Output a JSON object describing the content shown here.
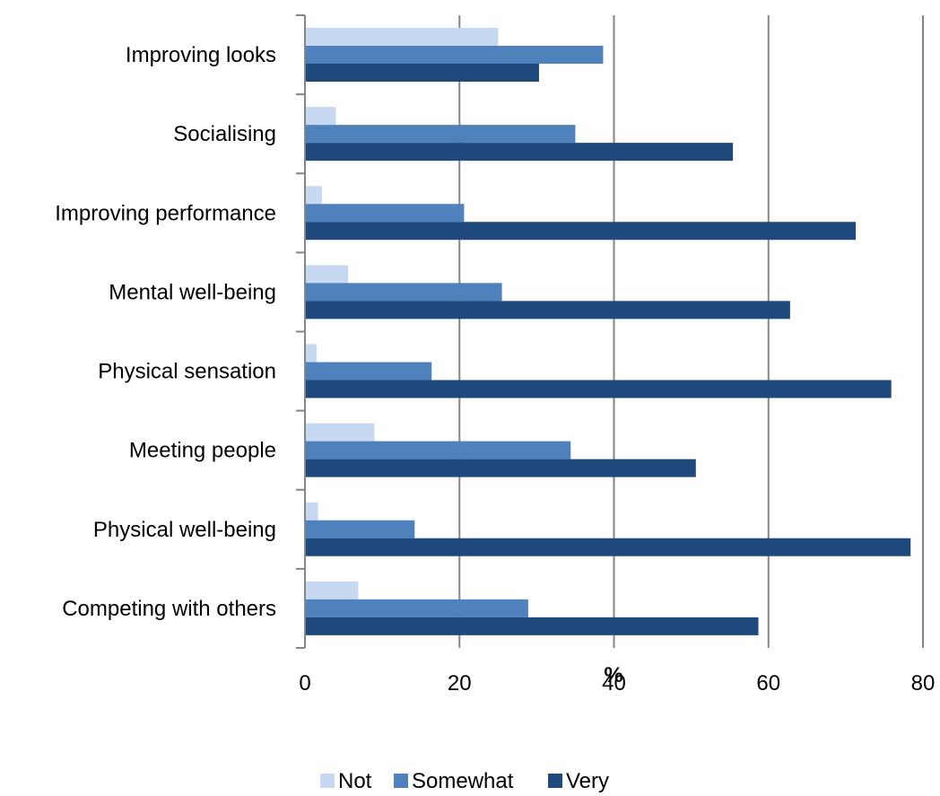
{
  "chart_data": {
    "type": "bar",
    "orientation": "horizontal",
    "categories": [
      "Improving looks",
      "Socialising",
      "Improving performance",
      "Mental well-being",
      "Physical sensation",
      "Meeting people",
      "Physical well-being",
      "Competing with others"
    ],
    "series": [
      {
        "name": "Not",
        "color": "#c6d9f1",
        "values": [
          25,
          4,
          2.2,
          5.6,
          1.5,
          9,
          1.7,
          6.9
        ]
      },
      {
        "name": "Somewhat",
        "color": "#4f81bd",
        "values": [
          38.6,
          35,
          20.6,
          25.5,
          16.4,
          34.4,
          14.2,
          28.9
        ]
      },
      {
        "name": "Very",
        "color": "#1f497d",
        "values": [
          30.3,
          55.4,
          71.3,
          62.8,
          75.9,
          50.6,
          78.4,
          58.7
        ]
      }
    ],
    "xlabel": "%",
    "xlim": [
      0,
      80
    ],
    "xticks": [
      "0",
      "20",
      "40",
      "60",
      "80"
    ],
    "grid": true,
    "legend_position": "bottom"
  }
}
